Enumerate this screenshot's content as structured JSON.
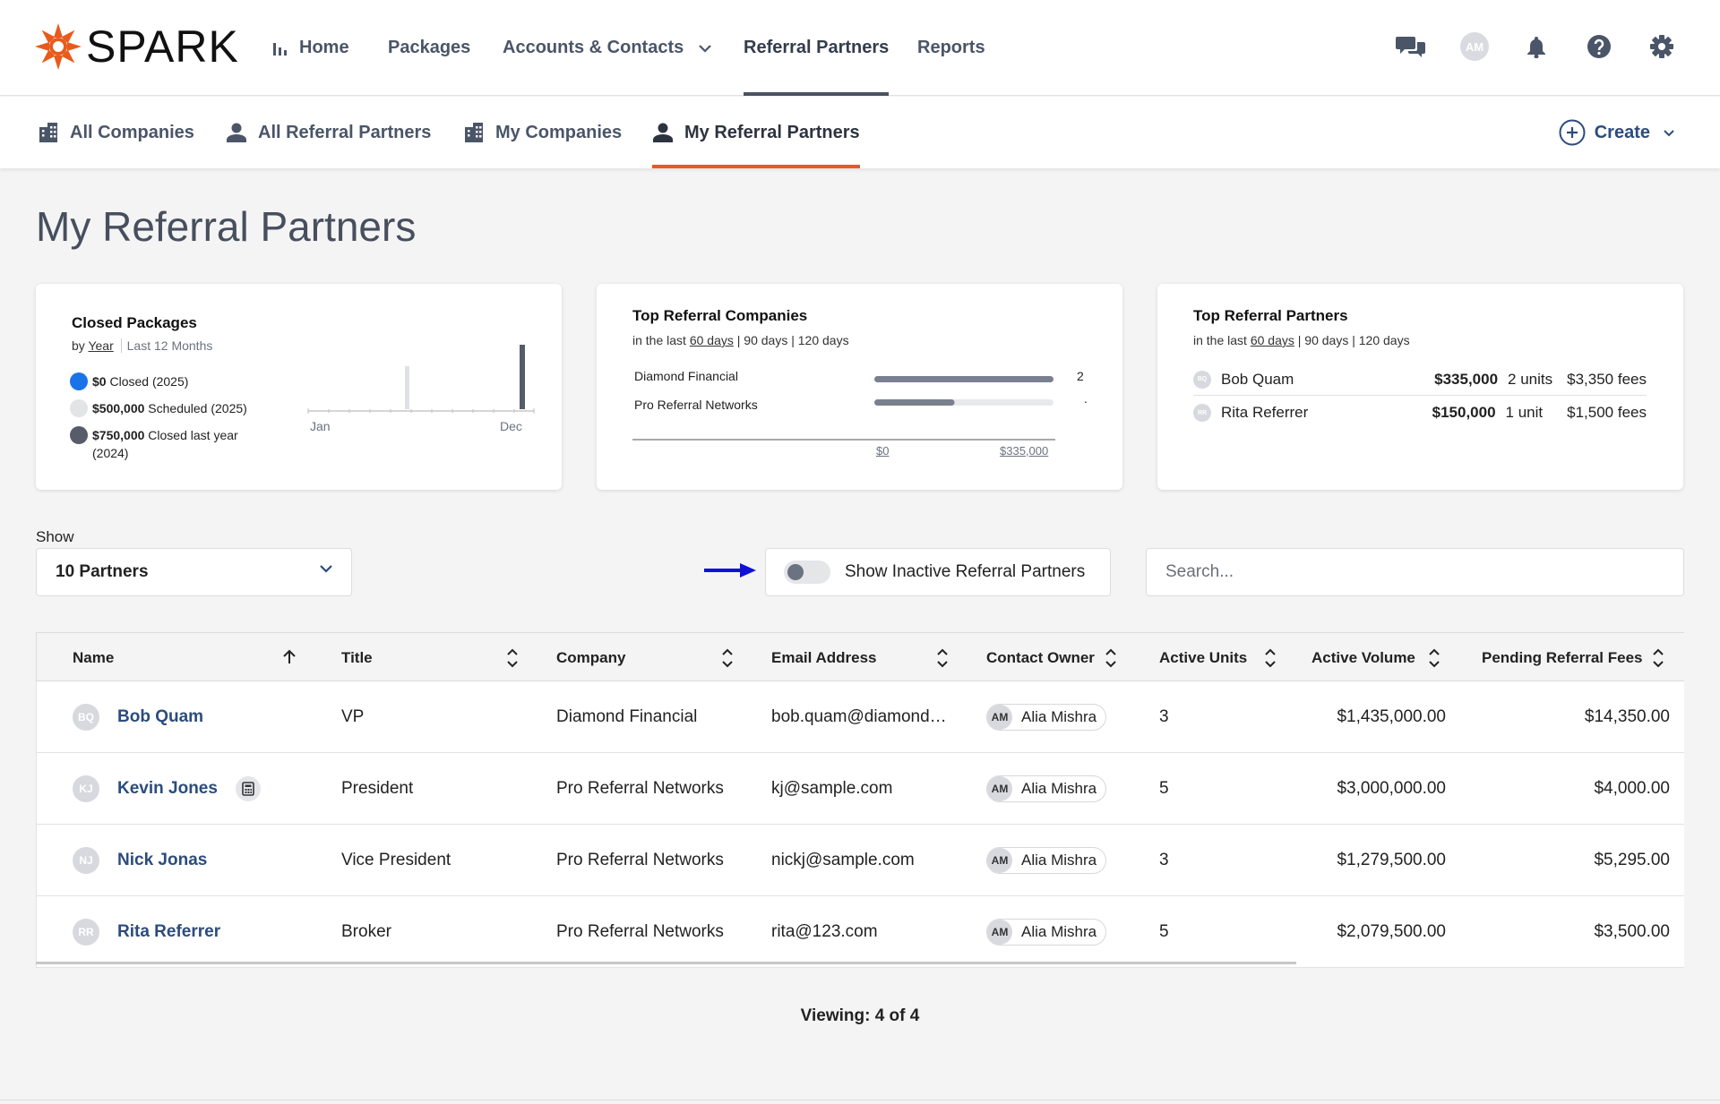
{
  "app": {
    "logo_text": "SPARK"
  },
  "topnav": {
    "items": [
      {
        "label": "Home",
        "icon": "bar-chart-icon"
      },
      {
        "label": "Packages"
      },
      {
        "label": "Accounts & Contacts",
        "has_dropdown": true
      },
      {
        "label": "Referral Partners",
        "active": true
      },
      {
        "label": "Reports"
      }
    ],
    "user_initials": "AM"
  },
  "subnav": {
    "items": [
      {
        "label": "All Companies",
        "icon": "building-icon"
      },
      {
        "label": "All Referral Partners",
        "icon": "person-icon"
      },
      {
        "label": "My Companies",
        "icon": "building-icon"
      },
      {
        "label": "My Referral Partners",
        "icon": "person-icon",
        "active": true
      }
    ],
    "create_label": "Create"
  },
  "page": {
    "title": "My Referral Partners"
  },
  "cards": {
    "closed_packages": {
      "title": "Closed Packages",
      "by_label": "by",
      "year_link": "Year",
      "period": "Last 12 Months",
      "legend": [
        {
          "amount": "$0",
          "text": "Closed (2025)",
          "color": "#1a73e8"
        },
        {
          "amount": "$500,000",
          "text": "Scheduled (2025)",
          "color": "#e3e4e6"
        },
        {
          "amount": "$750,000",
          "text": "Closed last year (2024)",
          "color": "#565c69"
        }
      ],
      "axis_start": "Jan",
      "axis_end": "Dec"
    },
    "top_companies": {
      "title": "Top Referral Companies",
      "range_prefix": "in the last",
      "range_active": "60 days",
      "range_others": "| 90 days | 120 days",
      "rows": [
        {
          "name": "Diamond Financial",
          "value": 335000,
          "count_label": "2"
        },
        {
          "name": "Pro Referral Networks",
          "value": 150000,
          "count_label": "."
        }
      ],
      "axis_min": "$0",
      "axis_max": "$335,000"
    },
    "top_partners": {
      "title": "Top Referral Partners",
      "range_prefix": "in the last",
      "range_active": "60 days",
      "range_others": "| 90 days | 120 days",
      "rows": [
        {
          "initials": "BQ",
          "name": "Bob Quam",
          "volume": "$335,000",
          "units": "2 units",
          "fees": "$3,350 fees"
        },
        {
          "initials": "RR",
          "name": "Rita Referrer",
          "volume": "$150,000",
          "units": "1 unit",
          "fees": "$1,500 fees"
        }
      ]
    }
  },
  "filters": {
    "show_label": "Show",
    "show_value": "10 Partners",
    "inactive_toggle_label": "Show Inactive Referral Partners",
    "inactive_toggle_on": false,
    "search_placeholder": "Search..."
  },
  "table": {
    "columns": [
      "Name",
      "Title",
      "Company",
      "Email Address",
      "Contact Owner",
      "Active Units",
      "Active Volume",
      "Pending Referral Fees"
    ],
    "rows": [
      {
        "initials": "BQ",
        "name": "Bob Quam",
        "title": "VP",
        "company": "Diamond Financial",
        "email": "bob.quam@diamond…",
        "owner_initials": "AM",
        "owner": "Alia Mishra",
        "units": "3",
        "volume": "$1,435,000.00",
        "fees": "$14,350.00"
      },
      {
        "initials": "KJ",
        "name": "Kevin Jones",
        "title": "President",
        "company": "Pro Referral Networks",
        "email": "kj@sample.com",
        "owner_initials": "AM",
        "owner": "Alia Mishra",
        "units": "5",
        "volume": "$3,000,000.00",
        "fees": "$4,000.00",
        "has_calc": true
      },
      {
        "initials": "NJ",
        "name": "Nick Jonas",
        "title": "Vice President",
        "company": "Pro Referral Networks",
        "email": "nickj@sample.com",
        "owner_initials": "AM",
        "owner": "Alia Mishra",
        "units": "3",
        "volume": "$1,279,500.00",
        "fees": "$5,295.00"
      },
      {
        "initials": "RR",
        "name": "Rita Referrer",
        "title": "Broker",
        "company": "Pro Referral Networks",
        "email": "rita@123.com",
        "owner_initials": "AM",
        "owner": "Alia Mishra",
        "units": "5",
        "volume": "$2,079,500.00",
        "fees": "$3,500.00"
      }
    ]
  },
  "footer": {
    "viewing": "Viewing: 4 of 4"
  },
  "colors": {
    "brand": "#e85a1c",
    "link": "#2b4c7e",
    "annotation_arrow": "#1010d8"
  }
}
